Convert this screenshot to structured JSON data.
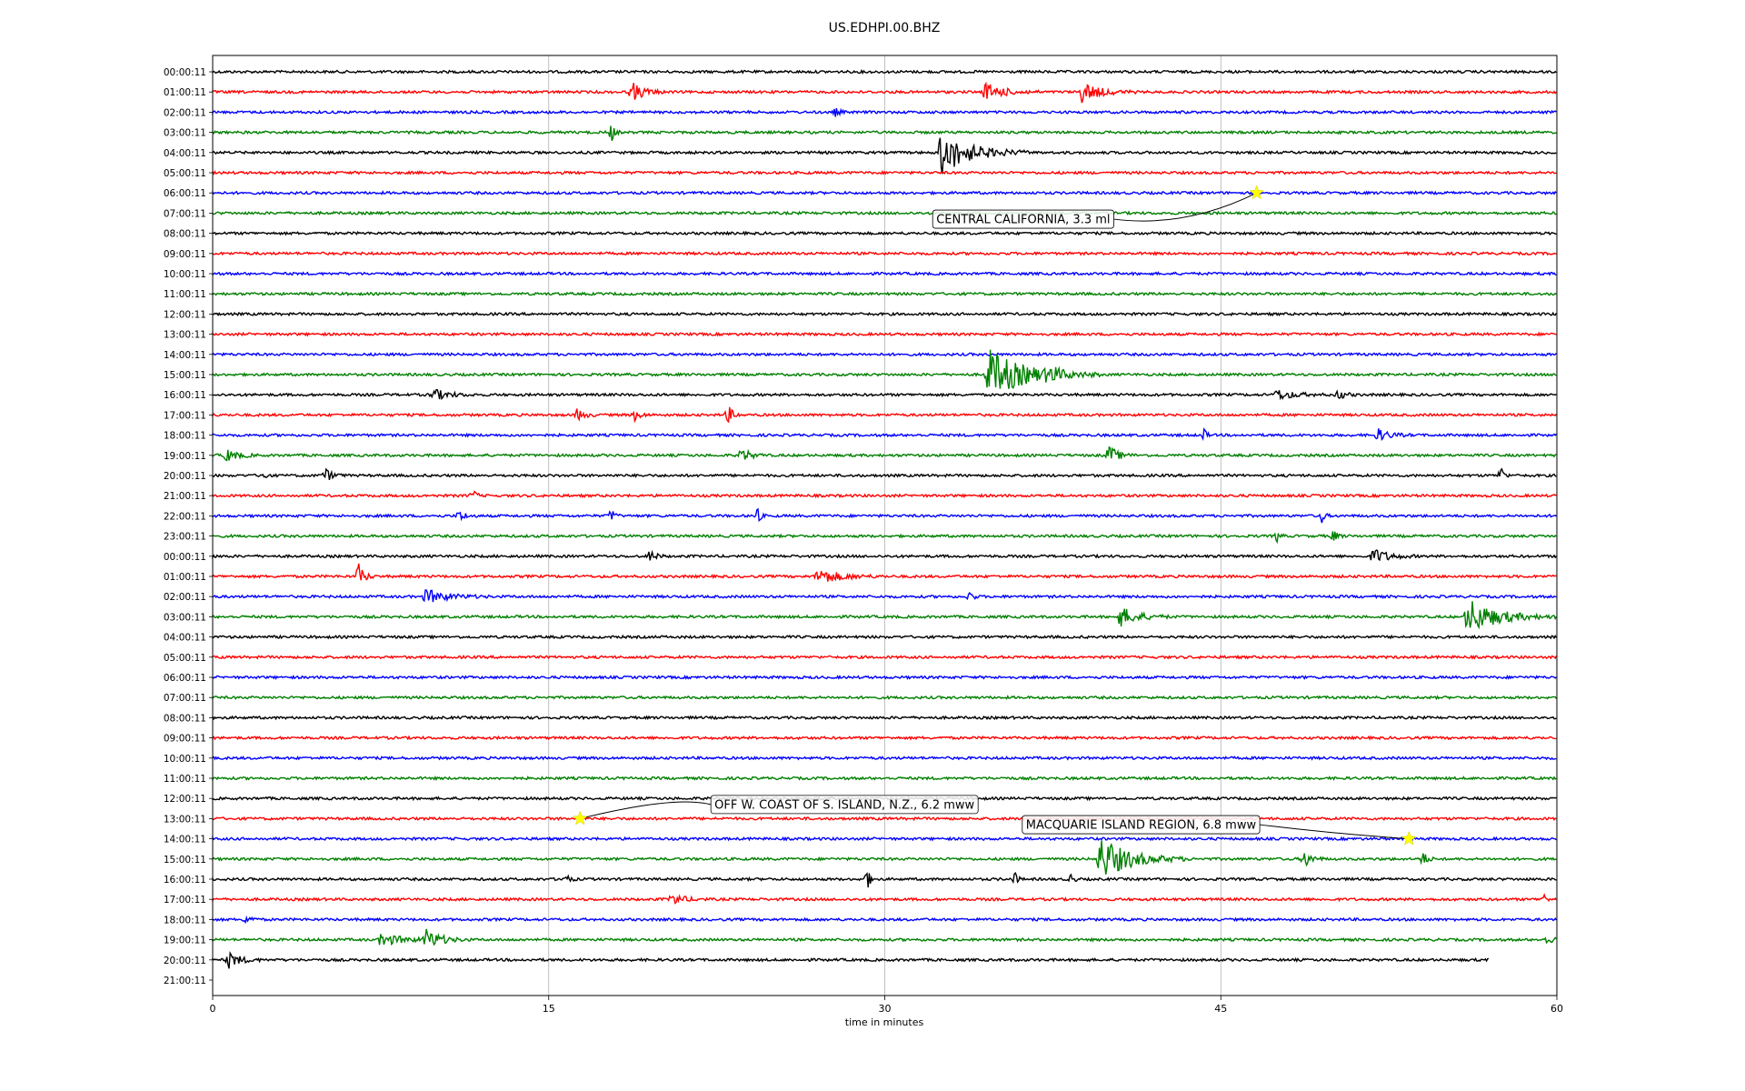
{
  "chart_data": {
    "type": "line",
    "title": "US.EDHPI.00.BHZ",
    "xlabel": "time in minutes",
    "ylabel": "",
    "xlim": [
      0,
      60
    ],
    "x_ticks": [
      "0",
      "15",
      "30",
      "45",
      "60"
    ],
    "grid": "vertical",
    "trace_colors": [
      "#000000",
      "#ff0000",
      "#0000ff",
      "#008000"
    ],
    "last_trace_end_minute": 57,
    "rows": [
      "00:00:11",
      "01:00:11",
      "02:00:11",
      "03:00:11",
      "04:00:11",
      "05:00:11",
      "06:00:11",
      "07:00:11",
      "08:00:11",
      "09:00:11",
      "10:00:11",
      "11:00:11",
      "12:00:11",
      "13:00:11",
      "14:00:11",
      "15:00:11",
      "16:00:11",
      "17:00:11",
      "18:00:11",
      "19:00:11",
      "20:00:11",
      "21:00:11",
      "22:00:11",
      "23:00:11",
      "00:00:11",
      "01:00:11",
      "02:00:11",
      "03:00:11",
      "04:00:11",
      "05:00:11",
      "06:00:11",
      "07:00:11",
      "08:00:11",
      "09:00:11",
      "10:00:11",
      "11:00:11",
      "12:00:11",
      "13:00:11",
      "14:00:11",
      "15:00:11",
      "16:00:11",
      "17:00:11",
      "18:00:11",
      "19:00:11",
      "20:00:11",
      "21:00:11"
    ],
    "events": [
      {
        "row": 1,
        "minute": 18.7,
        "amp": 1.0,
        "dur": 0.8
      },
      {
        "row": 1,
        "minute": 34.5,
        "amp": 0.9,
        "dur": 1.2
      },
      {
        "row": 1,
        "minute": 38.8,
        "amp": 1.0,
        "dur": 1.2
      },
      {
        "row": 2,
        "minute": 27.8,
        "amp": 0.4,
        "dur": 0.3
      },
      {
        "row": 3,
        "minute": 17.8,
        "amp": 1.0,
        "dur": 0.2
      },
      {
        "row": 4,
        "minute": 32.5,
        "amp": 2.2,
        "dur": 2.0
      },
      {
        "row": 15,
        "minute": 34.6,
        "amp": 2.6,
        "dur": 2.5
      },
      {
        "row": 15,
        "minute": 37.3,
        "amp": 0.8,
        "dur": 0.6
      },
      {
        "row": 16,
        "minute": 9.8,
        "amp": 0.6,
        "dur": 1.0
      },
      {
        "row": 16,
        "minute": 47.5,
        "amp": 0.5,
        "dur": 1.2
      },
      {
        "row": 16,
        "minute": 50.2,
        "amp": 0.5,
        "dur": 0.5
      },
      {
        "row": 17,
        "minute": 16.3,
        "amp": 0.7,
        "dur": 0.4
      },
      {
        "row": 17,
        "minute": 18.8,
        "amp": 0.6,
        "dur": 0.4
      },
      {
        "row": 17,
        "minute": 23.0,
        "amp": 1.0,
        "dur": 0.3
      },
      {
        "row": 18,
        "minute": 44.2,
        "amp": 0.8,
        "dur": 0.2
      },
      {
        "row": 18,
        "minute": 52.0,
        "amp": 0.6,
        "dur": 0.8
      },
      {
        "row": 19,
        "minute": 0.6,
        "amp": 0.6,
        "dur": 0.8
      },
      {
        "row": 19,
        "minute": 23.6,
        "amp": 0.7,
        "dur": 0.6
      },
      {
        "row": 19,
        "minute": 40.0,
        "amp": 1.0,
        "dur": 0.6
      },
      {
        "row": 20,
        "minute": 2.2,
        "amp": 0.9,
        "dur": 0.2
      },
      {
        "row": 20,
        "minute": 5.0,
        "amp": 0.7,
        "dur": 0.5
      },
      {
        "row": 20,
        "minute": 57.5,
        "amp": 1.0,
        "dur": 0.2
      },
      {
        "row": 21,
        "minute": 11.6,
        "amp": 0.8,
        "dur": 0.2
      },
      {
        "row": 22,
        "minute": 11.0,
        "amp": 0.6,
        "dur": 0.4
      },
      {
        "row": 22,
        "minute": 17.8,
        "amp": 0.8,
        "dur": 0.2
      },
      {
        "row": 22,
        "minute": 24.3,
        "amp": 0.9,
        "dur": 0.2
      },
      {
        "row": 22,
        "minute": 49.5,
        "amp": 0.7,
        "dur": 0.2
      },
      {
        "row": 23,
        "minute": 47.5,
        "amp": 0.6,
        "dur": 0.2
      },
      {
        "row": 23,
        "minute": 50.0,
        "amp": 0.6,
        "dur": 0.3
      },
      {
        "row": 24,
        "minute": 19.5,
        "amp": 0.6,
        "dur": 0.4
      },
      {
        "row": 24,
        "minute": 51.8,
        "amp": 0.8,
        "dur": 1.0
      },
      {
        "row": 25,
        "minute": 6.5,
        "amp": 1.3,
        "dur": 0.4
      },
      {
        "row": 25,
        "minute": 27.0,
        "amp": 0.8,
        "dur": 1.5
      },
      {
        "row": 26,
        "minute": 9.5,
        "amp": 0.7,
        "dur": 1.5
      },
      {
        "row": 26,
        "minute": 33.8,
        "amp": 0.8,
        "dur": 0.2
      },
      {
        "row": 27,
        "minute": 40.5,
        "amp": 1.0,
        "dur": 1.2
      },
      {
        "row": 27,
        "minute": 56.0,
        "amp": 1.8,
        "dur": 2.0
      },
      {
        "row": 39,
        "minute": 39.6,
        "amp": 2.2,
        "dur": 2.0
      },
      {
        "row": 39,
        "minute": 48.7,
        "amp": 0.9,
        "dur": 0.5
      },
      {
        "row": 39,
        "minute": 54.0,
        "amp": 0.8,
        "dur": 0.3
      },
      {
        "row": 40,
        "minute": 15.7,
        "amp": 0.6,
        "dur": 0.3
      },
      {
        "row": 40,
        "minute": 29.2,
        "amp": 1.2,
        "dur": 0.2
      },
      {
        "row": 40,
        "minute": 35.8,
        "amp": 0.7,
        "dur": 0.2
      },
      {
        "row": 40,
        "minute": 38.3,
        "amp": 0.6,
        "dur": 0.2
      },
      {
        "row": 41,
        "minute": 20.5,
        "amp": 0.6,
        "dur": 0.8
      },
      {
        "row": 41,
        "minute": 59.4,
        "amp": 0.6,
        "dur": 0.2
      },
      {
        "row": 42,
        "minute": 1.5,
        "amp": 0.6,
        "dur": 0.3
      },
      {
        "row": 43,
        "minute": 7.5,
        "amp": 0.6,
        "dur": 1.5
      },
      {
        "row": 43,
        "minute": 9.5,
        "amp": 1.0,
        "dur": 1.0
      },
      {
        "row": 43,
        "minute": 59.6,
        "amp": 0.6,
        "dur": 0.3
      },
      {
        "row": 44,
        "minute": 0.7,
        "amp": 0.8,
        "dur": 0.8
      }
    ],
    "annotations": [
      {
        "text": "CENTRAL CALIFORNIA, 3.3 ml",
        "row": 6,
        "minute": 46.6,
        "label_row": 7.3,
        "label_minute": 32.3
      },
      {
        "text": "OFF W. COAST OF S. ISLAND, N.Z., 6.2 mww",
        "row": 37,
        "minute": 16.4,
        "label_row": 36.3,
        "label_minute": 22.4
      },
      {
        "text": "MACQUARIE ISLAND REGION, 6.8 mww",
        "row": 38,
        "minute": 53.4,
        "label_row": 37.3,
        "label_minute": 36.3
      }
    ],
    "marker_color": "#ffff00"
  }
}
